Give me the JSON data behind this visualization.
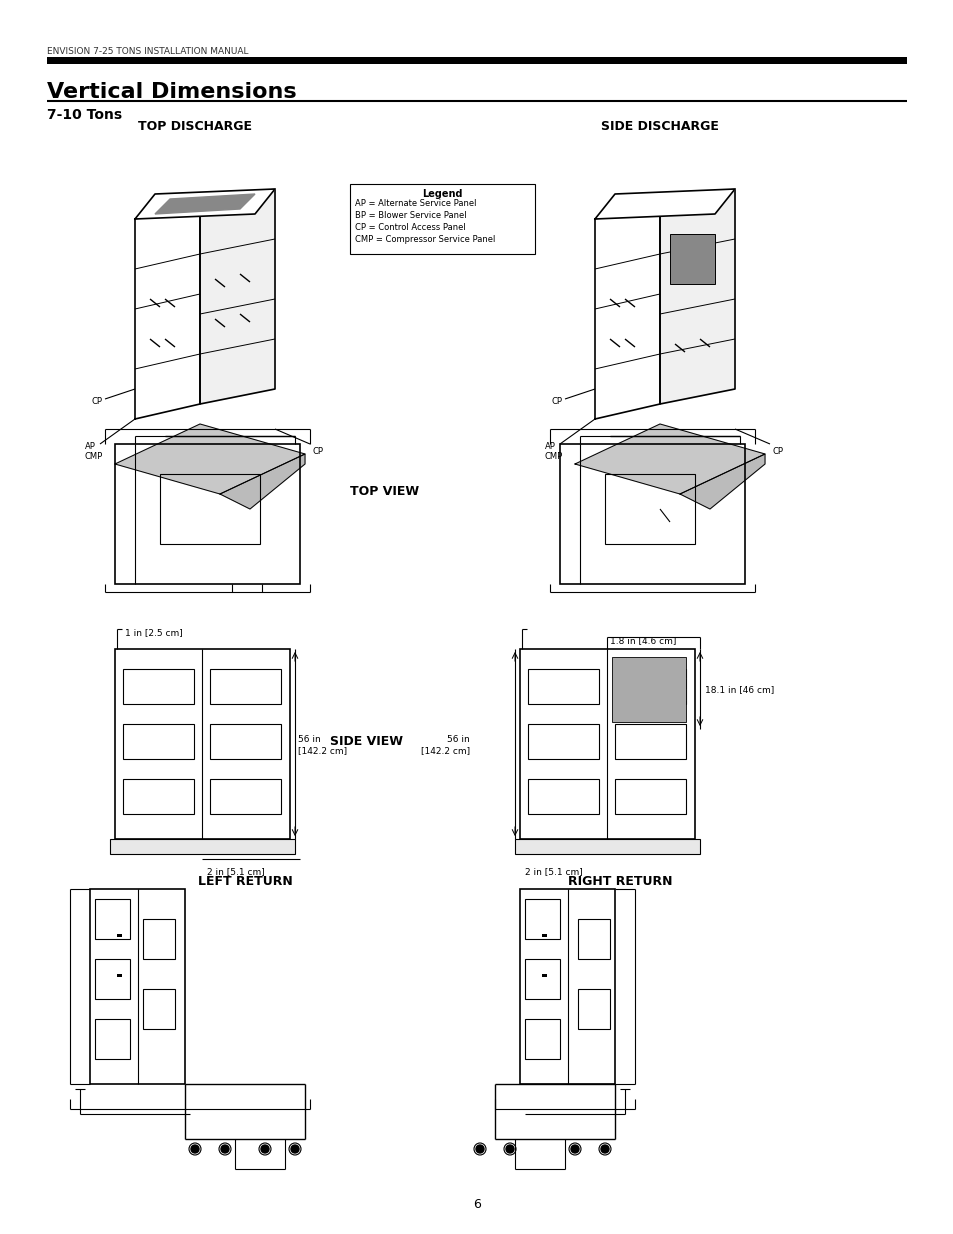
{
  "page_title": "ENVISION 7-25 TONS INSTALLATION MANUAL",
  "section_title": "Vertical Dimensions",
  "subsection": "7-10 Tons",
  "top_discharge_label": "TOP DISCHARGE",
  "side_discharge_label": "SIDE DISCHARGE",
  "top_view_label": "TOP VIEW",
  "side_view_label": "SIDE VIEW",
  "left_return_label": "LEFT RETURN",
  "right_return_label": "RIGHT RETURN",
  "legend_title": "Legend",
  "legend_items": [
    "AP = Alternate Service Panel",
    "BP = Blower Service Panel",
    "CP = Control Access Panel",
    "CMP = Compressor Service Panel"
  ],
  "dim_1in": "1 in [2.5 cm]",
  "dim_56in": "56 in\n[142.2 cm]",
  "dim_2in": "2 in [5.1 cm]",
  "dim_18in": "18.1 in [46 cm]",
  "dim_1_8in": "1.8 in [4.6 cm]",
  "dim_56in_right": "56 in\n[142.2 cm]",
  "dim_2in_right": "2 in [5.1 cm]",
  "page_number": "6",
  "bg_color": "#ffffff",
  "line_color": "#000000",
  "gray_color": "#cccccc",
  "text_color": "#000000"
}
